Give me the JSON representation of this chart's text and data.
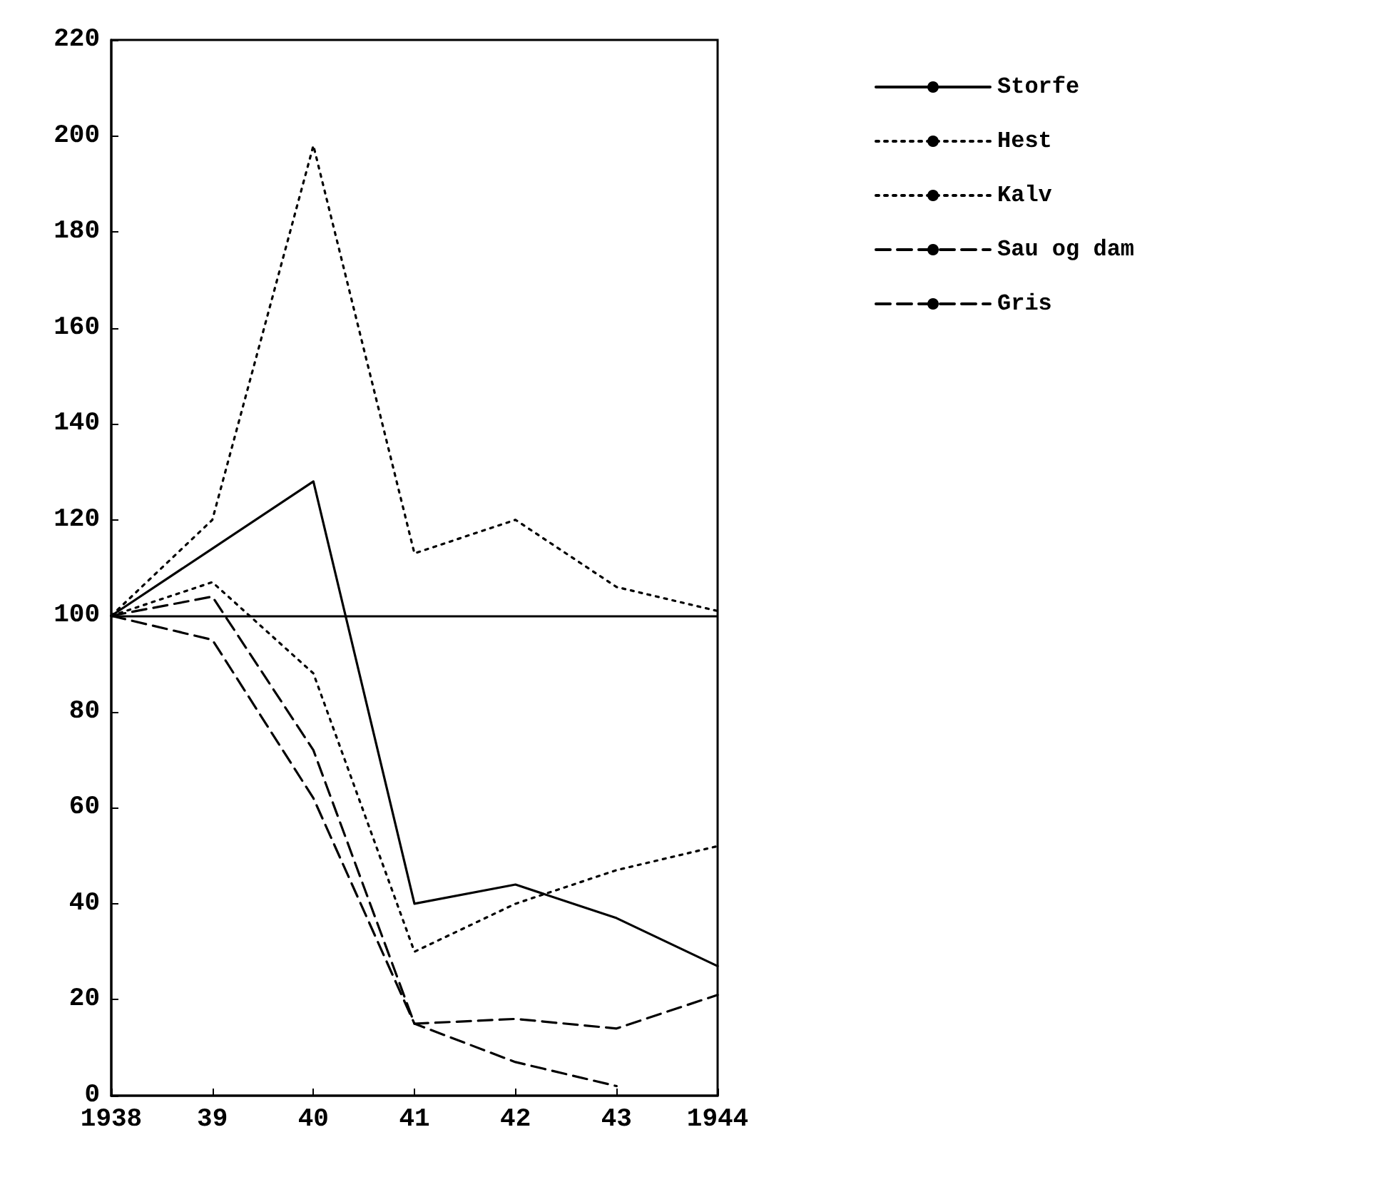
{
  "chart_data": {
    "type": "line",
    "categories": [
      "1938",
      "39",
      "40",
      "41",
      "42",
      "43",
      "1944"
    ],
    "series": [
      {
        "name": "Storfe",
        "color": "#000000",
        "line_style": "solid",
        "values": [
          100,
          114,
          128,
          40,
          44,
          37,
          27
        ]
      },
      {
        "name": "Hest",
        "color": "#000000",
        "line_style": "dotted",
        "values": [
          100,
          120,
          198,
          113,
          120,
          106,
          101
        ]
      },
      {
        "name": "Kalv",
        "color": "#000000",
        "line_style": "dotted",
        "values": [
          100,
          107,
          88,
          30,
          40,
          47,
          52
        ]
      },
      {
        "name": "Sau og dam",
        "color": "#000000",
        "line_style": "dashed",
        "values": [
          100,
          104,
          72,
          15,
          16,
          14,
          21
        ]
      },
      {
        "name": "Gris",
        "color": "#000000",
        "line_style": "dashed",
        "values": [
          100,
          95,
          62,
          15,
          7,
          2,
          null
        ]
      }
    ],
    "ylim": [
      0,
      220
    ],
    "yticks": [
      0,
      20,
      40,
      60,
      80,
      100,
      120,
      140,
      160,
      180,
      200,
      220
    ],
    "ref_lines": [
      {
        "axis": "y",
        "value": 100,
        "color": "#000000",
        "line_style": "solid"
      }
    ],
    "grid": false,
    "legend": "right",
    "marker": "none"
  }
}
